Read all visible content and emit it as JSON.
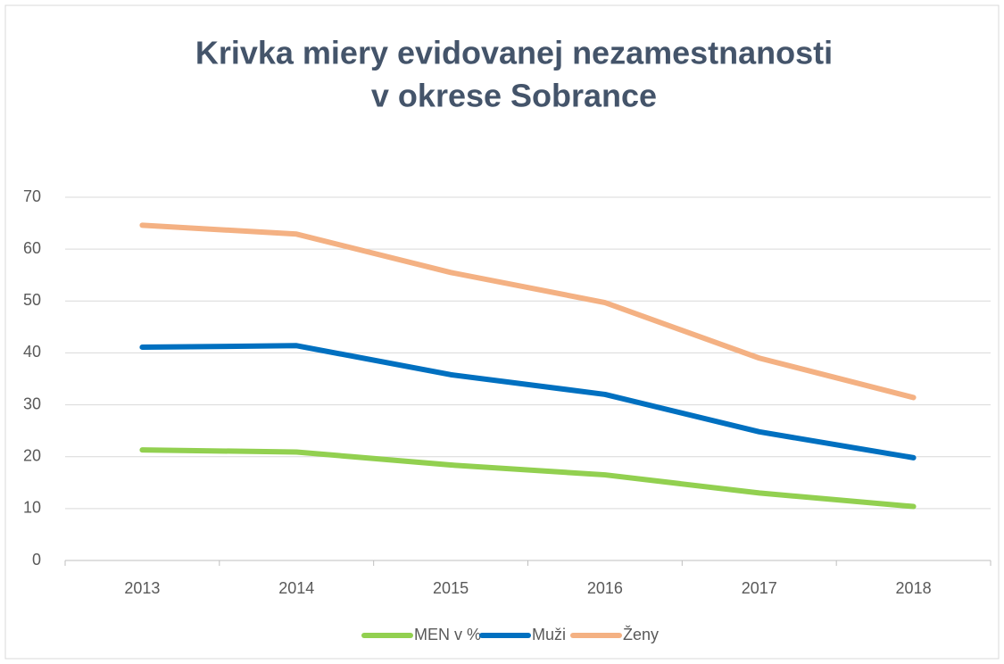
{
  "chart_data": {
    "type": "line",
    "title": [
      "Krivka miery evidovanej nezamestnanosti",
      "v okrese Sobrance"
    ],
    "categories": [
      "2013",
      "2014",
      "2015",
      "2016",
      "2017",
      "2018"
    ],
    "series": [
      {
        "name": "MEN v %",
        "color": "#92d050",
        "values": [
          21.3,
          20.9,
          18.4,
          16.5,
          13.0,
          10.4
        ]
      },
      {
        "name": "Muži",
        "color": "#0070c0",
        "values": [
          41.1,
          41.4,
          35.8,
          32.0,
          24.8,
          19.8
        ]
      },
      {
        "name": "Ženy",
        "color": "#f4b183",
        "values": [
          64.6,
          62.9,
          55.5,
          49.7,
          39.0,
          31.4
        ]
      }
    ],
    "ylim": [
      0,
      70
    ],
    "yticks": [
      0,
      10,
      20,
      30,
      40,
      50,
      60,
      70
    ],
    "grid": true,
    "legend": "bottom"
  }
}
